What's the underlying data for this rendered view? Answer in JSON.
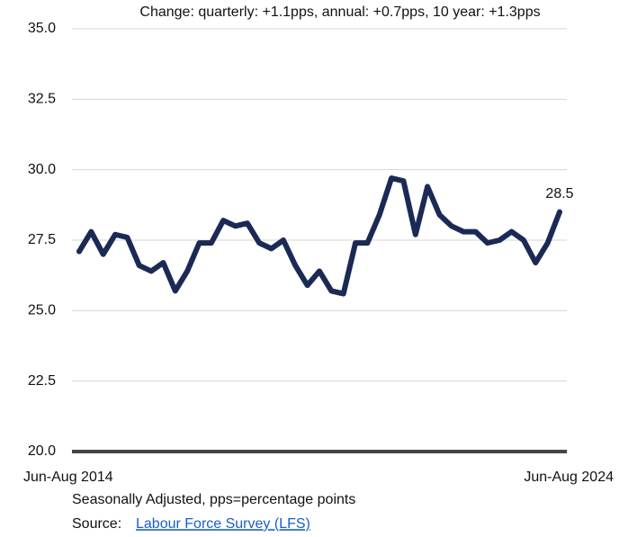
{
  "chart_data": {
    "type": "line",
    "subtitle": "Change: quarterly: +1.1pps, annual: +0.7pps, 10 year: +1.3pps",
    "categories": [
      "Jun-Aug 2014",
      null,
      null,
      null,
      null,
      null,
      null,
      null,
      null,
      null,
      null,
      null,
      null,
      null,
      null,
      null,
      null,
      null,
      null,
      null,
      null,
      null,
      null,
      null,
      null,
      null,
      null,
      null,
      null,
      null,
      null,
      null,
      null,
      null,
      null,
      null,
      null,
      null,
      null,
      null,
      "Jun-Aug 2024"
    ],
    "series": [
      {
        "name": null,
        "color": "#1b2a55",
        "values": [
          27.1,
          27.8,
          27.0,
          27.7,
          27.6,
          26.6,
          26.4,
          26.7,
          25.7,
          26.4,
          27.4,
          27.4,
          28.2,
          28.0,
          28.1,
          27.4,
          27.2,
          27.5,
          26.6,
          25.9,
          26.4,
          25.7,
          25.6,
          27.4,
          27.4,
          28.4,
          29.7,
          29.6,
          27.7,
          29.4,
          28.4,
          28.0,
          27.8,
          27.8,
          27.4,
          27.5,
          27.8,
          27.5,
          26.7,
          27.4,
          28.5
        ]
      }
    ],
    "ylim": [
      20,
      35
    ],
    "yticks": [
      {
        "value": 20,
        "label": "20.0"
      },
      22.5,
      {
        "value": 25,
        "label": "25.0"
      },
      27.5,
      {
        "value": 30,
        "label": "30.0"
      },
      32.5,
      {
        "value": 35,
        "label": "35.0"
      }
    ],
    "grid": true,
    "note": "Seasonally Adjusted, pps=percentage points",
    "source_label": "Source:",
    "source_link": "Labour Force Survey (LFS)"
  }
}
